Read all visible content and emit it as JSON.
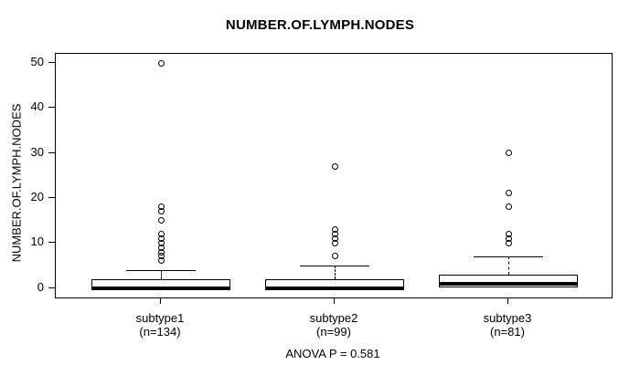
{
  "title": "NUMBER.OF.LYMPH.NODES",
  "y_axis": {
    "label": "NUMBER.OF.LYMPH.NODES",
    "ticks": [
      0,
      10,
      20,
      30,
      40,
      50
    ]
  },
  "x_axis": {
    "groups": [
      {
        "label": "subtype1",
        "sublabel": "(n=134)"
      },
      {
        "label": "subtype2",
        "sublabel": "(n=99)"
      },
      {
        "label": "subtype3",
        "sublabel": "(n=81)"
      }
    ]
  },
  "footer": {
    "annotation": "ANOVA P = 0.581"
  },
  "colors": {
    "line": "#000000",
    "box_fill": "#fdfdfd",
    "background": "#ffffff"
  },
  "chart_data": {
    "type": "boxplot",
    "title": "NUMBER.OF.LYMPH.NODES",
    "ylabel": "NUMBER.OF.LYMPH.NODES",
    "xlabel": "",
    "ylim": [
      0,
      50
    ],
    "yticks": [
      0,
      10,
      20,
      30,
      40,
      50
    ],
    "grid": false,
    "categories": [
      "subtype1",
      "subtype2",
      "subtype3"
    ],
    "category_sublabels": [
      "(n=134)",
      "(n=99)",
      "(n=81)"
    ],
    "sample_sizes": [
      134,
      99,
      81
    ],
    "annotation": "ANOVA P = 0.581",
    "series": [
      {
        "name": "subtype1",
        "n": 134,
        "whisker_low": 0,
        "q1": 0,
        "median": 0,
        "q3": 2,
        "whisker_high": 4,
        "outliers": [
          6,
          7,
          8,
          9,
          10,
          11,
          12,
          15,
          17,
          18,
          50
        ]
      },
      {
        "name": "subtype2",
        "n": 99,
        "whisker_low": 0,
        "q1": 0,
        "median": 0,
        "q3": 2,
        "whisker_high": 5,
        "outliers": [
          7,
          10,
          11,
          12,
          13,
          27
        ]
      },
      {
        "name": "subtype3",
        "n": 81,
        "whisker_low": 0,
        "q1": 0,
        "median": 1,
        "q3": 3,
        "whisker_high": 7,
        "outliers": [
          10,
          11,
          12,
          18,
          21,
          30
        ]
      }
    ]
  }
}
